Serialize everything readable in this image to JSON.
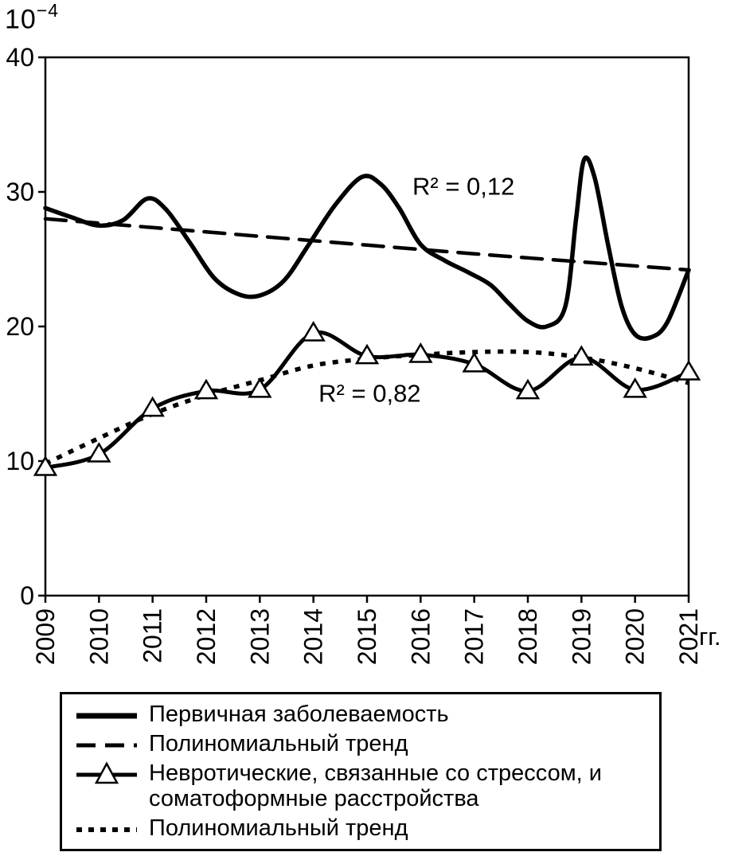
{
  "chart_data": {
    "type": "line",
    "title": "",
    "unit_base": "10",
    "unit_exponent": "−4",
    "xlabel": "гг.",
    "ylabel": "",
    "grid": false,
    "legend_position": "bottom-box",
    "xlim": [
      2009,
      2021
    ],
    "ylim": [
      0,
      40
    ],
    "x_ticks": [
      2009,
      2010,
      2011,
      2012,
      2013,
      2014,
      2015,
      2016,
      2017,
      2018,
      2019,
      2020,
      2021
    ],
    "y_ticks": [
      0,
      10,
      20,
      30,
      40
    ],
    "series": [
      {
        "name": "Полиномиальный тренд",
        "style": "dashed",
        "x": [
          2009,
          2011,
          2013,
          2015,
          2017,
          2019,
          2021
        ],
        "values": [
          28.0,
          27.35,
          26.7,
          26.05,
          25.4,
          24.8,
          24.2
        ]
      },
      {
        "name": "Полиномиальный тренд",
        "style": "dotted",
        "x": [
          2009,
          2010,
          2011,
          2012,
          2013,
          2014,
          2015,
          2016,
          2017,
          2018,
          2019,
          2020,
          2021
        ],
        "values": [
          9.8,
          11.7,
          13.5,
          14.9,
          16.0,
          17.1,
          17.6,
          17.9,
          18.1,
          18.1,
          17.7,
          16.9,
          15.8
        ]
      },
      {
        "name": "Невротические, связанные со стрессом, и соматоформные расстройства",
        "style": "triangle",
        "x": [
          2009,
          2010,
          2011,
          2012,
          2013,
          2014,
          2015,
          2016,
          2017,
          2018,
          2019,
          2020,
          2021
        ],
        "values": [
          9.5,
          10.5,
          13.9,
          15.2,
          15.3,
          19.5,
          17.8,
          17.9,
          17.2,
          15.2,
          17.7,
          15.3,
          16.6
        ]
      },
      {
        "name": "Первичная заболеваемость",
        "style": "solid",
        "x": [
          2009.0,
          2009.5,
          2010.0,
          2010.45,
          2010.9,
          2011.25,
          2011.7,
          2012.15,
          2012.6,
          2013.0,
          2013.45,
          2013.9,
          2014.4,
          2014.9,
          2015.25,
          2015.6,
          2016.0,
          2016.45,
          2016.9,
          2017.3,
          2017.65,
          2018.0,
          2018.35,
          2018.7,
          2018.9,
          2019.05,
          2019.25,
          2019.5,
          2019.75,
          2020.0,
          2020.3,
          2020.6,
          2021.0
        ],
        "values": [
          28.8,
          28.1,
          27.5,
          27.9,
          29.5,
          28.7,
          26.2,
          23.6,
          22.4,
          22.3,
          23.4,
          26.0,
          29.0,
          31.1,
          30.6,
          28.8,
          26.1,
          24.9,
          24.0,
          23.1,
          21.7,
          20.4,
          20.0,
          21.5,
          28.0,
          32.4,
          31.0,
          26.0,
          21.5,
          19.4,
          19.2,
          20.3,
          24.2
        ]
      }
    ],
    "annotations": [
      {
        "text": "R² = 0,12",
        "x": 2016.8,
        "y": 29.8
      },
      {
        "text": "R² = 0,82",
        "x": 2015.05,
        "y": 14.4
      }
    ]
  },
  "legend": {
    "items": [
      {
        "style": "solid",
        "label": "Первичная заболеваемость"
      },
      {
        "style": "dashed",
        "label": "Полиномиальный тренд"
      },
      {
        "style": "triangle",
        "label": "Невротические, связанные со стрессом, и соматоформные расстройства"
      },
      {
        "style": "dotted",
        "label": "Полиномиальный тренд"
      }
    ]
  },
  "colors": {
    "line": "#000000",
    "background": "#ffffff"
  }
}
